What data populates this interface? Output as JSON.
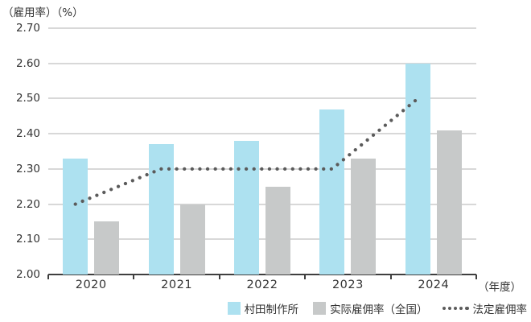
{
  "chart_data": {
    "type": "bar",
    "title": "",
    "ylabel": "（雇用率）（%）",
    "xlabel": "（年度）",
    "categories": [
      "2020",
      "2021",
      "2022",
      "2023",
      "2024"
    ],
    "series": [
      {
        "name": "村田制作所",
        "type": "bar",
        "color": "#ade1f0",
        "values": [
          2.33,
          2.37,
          2.38,
          2.47,
          2.6
        ]
      },
      {
        "name": "实际雇佣率（全国）",
        "type": "bar",
        "color": "#c7c9c9",
        "values": [
          2.15,
          2.2,
          2.25,
          2.33,
          2.41
        ]
      },
      {
        "name": "法定雇佣率",
        "type": "dotted_line",
        "color": "#5b5b5b",
        "values": [
          2.2,
          2.3,
          2.3,
          2.3,
          2.5
        ]
      }
    ],
    "ylim": [
      2.0,
      2.7
    ],
    "y_tick_step": 0.1,
    "y_tick_labels": [
      "2.00",
      "2.10",
      "2.20",
      "2.30",
      "2.40",
      "2.50",
      "2.60",
      "2.70"
    ],
    "grid": true,
    "legend_position": "bottom-right",
    "colors": {
      "grid": "#d8d8d8",
      "axis": "#3f3f3f",
      "text": "#333333"
    }
  }
}
